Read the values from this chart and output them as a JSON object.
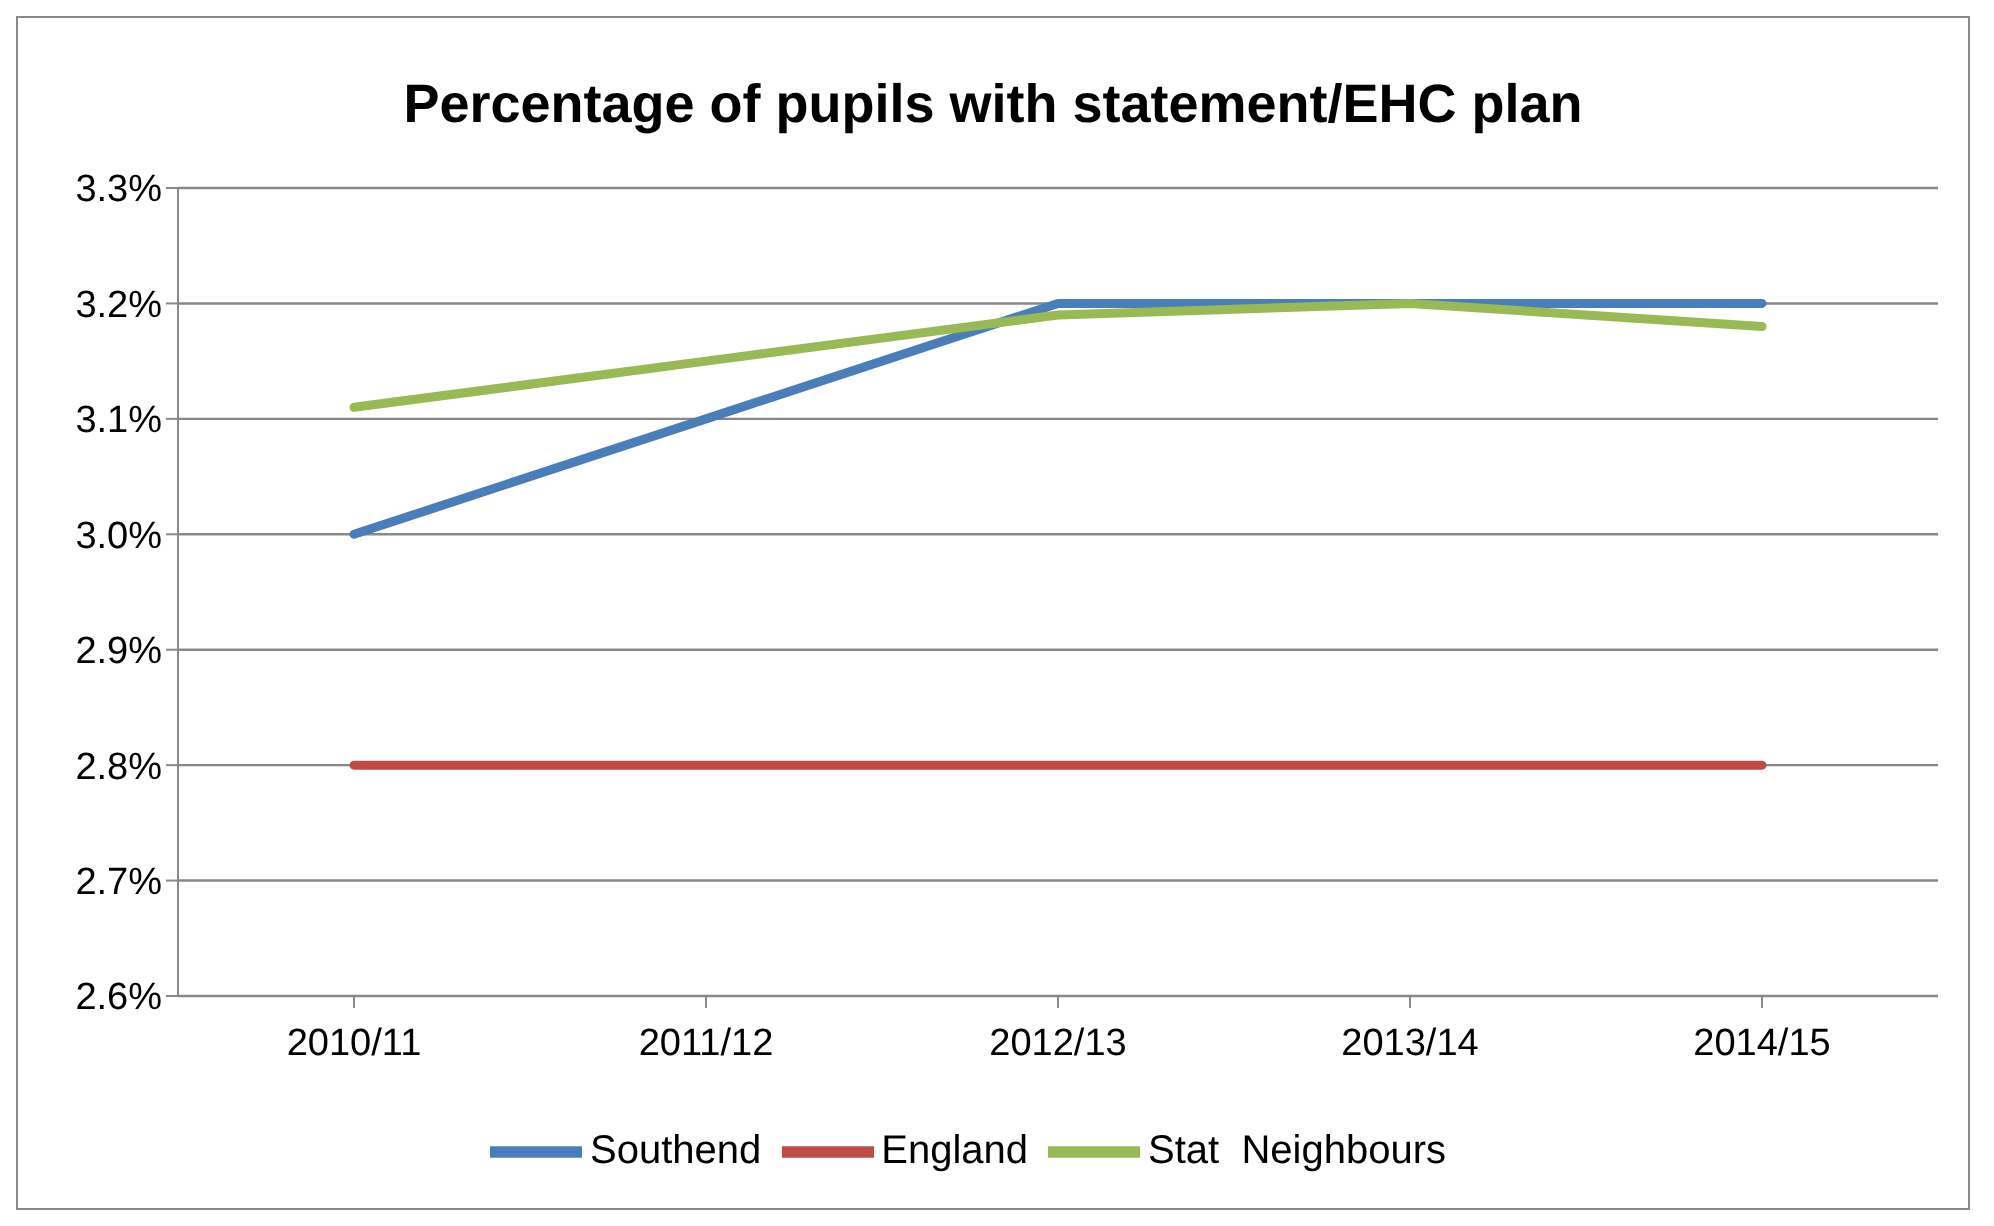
{
  "chart_data": {
    "type": "line",
    "title": "Percentage of pupils with statement/EHC plan",
    "categories": [
      "2010/11",
      "2011/12",
      "2012/13",
      "2013/14",
      "2014/15"
    ],
    "series": [
      {
        "name": "Southend",
        "color": "#4a7ebb",
        "values": [
          3.0,
          3.1,
          3.2,
          3.2,
          3.2
        ]
      },
      {
        "name": "England",
        "color": "#be4b48",
        "values": [
          2.8,
          2.8,
          2.8,
          2.8,
          2.8
        ]
      },
      {
        "name": "Stat  Neighbours",
        "color": "#98b954",
        "values": [
          3.11,
          3.15,
          3.19,
          3.2,
          3.18
        ]
      }
    ],
    "ylim": [
      2.6,
      3.3
    ],
    "yticks": [
      {
        "value": 2.6,
        "label": "2.6%"
      },
      {
        "value": 2.7,
        "label": "2.7%"
      },
      {
        "value": 2.8,
        "label": "2.8%"
      },
      {
        "value": 2.9,
        "label": "2.9%"
      },
      {
        "value": 3.0,
        "label": "3.0%"
      },
      {
        "value": 3.1,
        "label": "3.1%"
      },
      {
        "value": 3.2,
        "label": "3.2%"
      },
      {
        "value": 3.3,
        "label": "3.3%"
      }
    ],
    "grid": "y",
    "legend": "bottom",
    "marker": "none",
    "line_style": "solid"
  }
}
